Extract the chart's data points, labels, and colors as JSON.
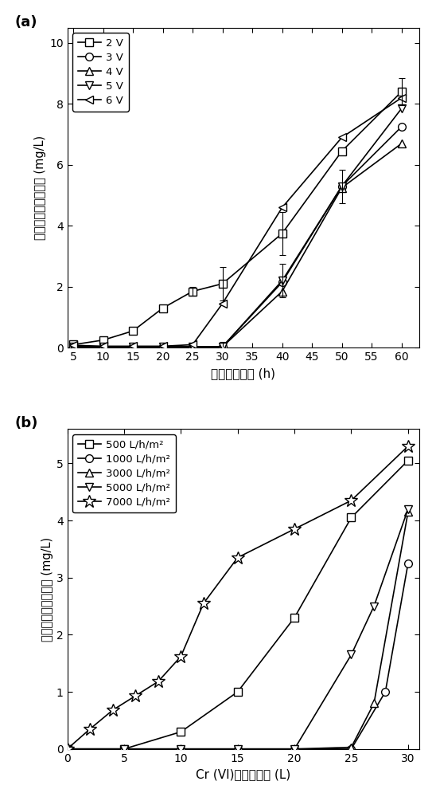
{
  "panel_a": {
    "panel_label": "(a)",
    "xlabel": "连续运行时间 (h)",
    "ylabel": "出水中总钓离子浓度 (mg/L)",
    "xlim": [
      4,
      63
    ],
    "ylim": [
      0,
      10.5
    ],
    "xticks": [
      5,
      10,
      15,
      20,
      25,
      30,
      35,
      40,
      45,
      50,
      55,
      60
    ],
    "yticks": [
      0,
      2,
      4,
      6,
      8,
      10
    ],
    "series": [
      {
        "label": "2 V",
        "marker": "s",
        "x": [
          5,
          10,
          15,
          20,
          25,
          30,
          40,
          50,
          60
        ],
        "y": [
          0.1,
          0.25,
          0.55,
          1.3,
          1.85,
          2.1,
          3.75,
          6.45,
          8.4
        ],
        "yerr": [
          0,
          0,
          0,
          0,
          0.15,
          0.55,
          0.7,
          0,
          0.45
        ]
      },
      {
        "label": "3 V",
        "marker": "o",
        "x": [
          5,
          10,
          15,
          20,
          25,
          30,
          40,
          50,
          60
        ],
        "y": [
          0.03,
          0.03,
          0.03,
          0.03,
          0.03,
          0.03,
          2.15,
          5.3,
          7.25
        ],
        "yerr": [
          0,
          0,
          0,
          0,
          0,
          0,
          0,
          0.55,
          0
        ]
      },
      {
        "label": "4 V",
        "marker": "^",
        "x": [
          5,
          10,
          15,
          20,
          25,
          30,
          40,
          50,
          60
        ],
        "y": [
          0.03,
          0.03,
          0.03,
          0.03,
          0.03,
          0.03,
          1.85,
          5.25,
          6.7
        ],
        "yerr": [
          0,
          0,
          0,
          0,
          0,
          0,
          0,
          0,
          0
        ]
      },
      {
        "label": "5 V",
        "marker": "v",
        "x": [
          5,
          10,
          15,
          20,
          25,
          30,
          40,
          50,
          60
        ],
        "y": [
          0.03,
          0.03,
          0.03,
          0.03,
          0.03,
          0.03,
          2.2,
          5.3,
          7.85
        ],
        "yerr": [
          0,
          0,
          0,
          0,
          0,
          0.15,
          0.55,
          0,
          0
        ]
      },
      {
        "label": "6 V",
        "marker": "<",
        "x": [
          5,
          10,
          15,
          20,
          25,
          30,
          40,
          50,
          60
        ],
        "y": [
          0.08,
          0.05,
          0.05,
          0.05,
          0.1,
          1.45,
          4.6,
          6.9,
          8.2
        ],
        "yerr": [
          0,
          0,
          0,
          0,
          0,
          0,
          0,
          0,
          0
        ]
      }
    ]
  },
  "panel_b": {
    "panel_label": "(b)",
    "xlabel": "Cr (VI)污水处理量 (L)",
    "ylabel": "出水中总钓离子浓度 (mg/L)",
    "xlim": [
      0,
      31
    ],
    "ylim": [
      0,
      5.6
    ],
    "xticks": [
      0,
      5,
      10,
      15,
      20,
      25,
      30
    ],
    "yticks": [
      0,
      1,
      2,
      3,
      4,
      5
    ],
    "series": [
      {
        "label": "500 L/h/m²",
        "marker": "s",
        "x": [
          0,
          5,
          10,
          15,
          20,
          25,
          30
        ],
        "y": [
          0.0,
          0.0,
          0.3,
          1.0,
          2.3,
          4.05,
          5.05
        ]
      },
      {
        "label": "1000 L/h/m²",
        "marker": "o",
        "x": [
          0,
          5,
          10,
          15,
          20,
          25,
          28,
          30
        ],
        "y": [
          0.0,
          0.0,
          0.0,
          0.0,
          0.0,
          0.0,
          1.0,
          3.25
        ]
      },
      {
        "label": "3000 L/h/m²",
        "marker": "^",
        "x": [
          0,
          5,
          10,
          15,
          20,
          25,
          27,
          30
        ],
        "y": [
          0.0,
          0.0,
          0.0,
          0.0,
          0.0,
          0.03,
          0.8,
          4.15
        ]
      },
      {
        "label": "5000 L/h/m²",
        "marker": "v",
        "x": [
          0,
          5,
          10,
          15,
          20,
          25,
          27,
          30
        ],
        "y": [
          0.0,
          0.0,
          0.0,
          0.0,
          0.0,
          1.65,
          2.5,
          4.2
        ]
      },
      {
        "label": "7000 L/h/m²",
        "marker": "*",
        "x": [
          0,
          2,
          4,
          6,
          8,
          10,
          12,
          15,
          20,
          25,
          30
        ],
        "y": [
          0.0,
          0.35,
          0.68,
          0.93,
          1.18,
          1.62,
          2.55,
          3.35,
          3.85,
          4.35,
          5.3
        ]
      }
    ]
  }
}
